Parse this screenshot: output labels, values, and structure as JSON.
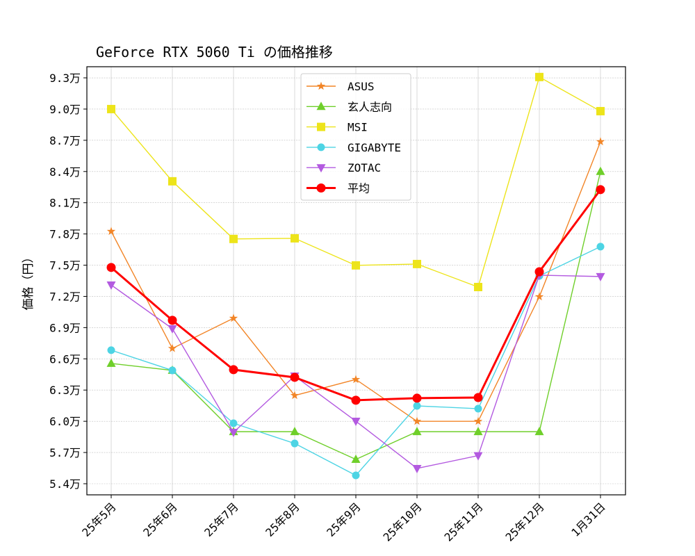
{
  "chart_data": {
    "type": "line",
    "title": "GeForce RTX 5060 Ti の価格推移",
    "xlabel": "",
    "ylabel": "価格（円）",
    "categories": [
      "25年5月",
      "25年6月",
      "25年7月",
      "25年8月",
      "25年9月",
      "25年10月",
      "25年11月",
      "25年12月",
      "1月31日"
    ],
    "ylim": [
      53000,
      94000
    ],
    "yticks": [
      54000,
      57000,
      60000,
      63000,
      66000,
      69000,
      72000,
      75000,
      78000,
      81000,
      84000,
      87000,
      90000,
      93000
    ],
    "ytick_labels": [
      "5.4万",
      "5.7万",
      "6.0万",
      "6.3万",
      "6.6万",
      "6.9万",
      "7.2万",
      "7.5万",
      "7.8万",
      "8.1万",
      "8.4万",
      "8.7万",
      "9.0万",
      "9.3万"
    ],
    "grid": true,
    "legend_position": "top-center",
    "series": [
      {
        "name": "ASUS",
        "color": "#f28527",
        "marker": "star",
        "values": [
          78250,
          67000,
          69900,
          62480,
          64020,
          60000,
          60000,
          71970,
          86870
        ]
      },
      {
        "name": "玄人志向",
        "color": "#6fcf2a",
        "marker": "triangle-up",
        "values": [
          65560,
          64890,
          59000,
          59000,
          56340,
          59000,
          59000,
          59000,
          84000
        ]
      },
      {
        "name": "MSI",
        "color": "#ede41a",
        "marker": "square",
        "values": [
          90000,
          83060,
          77520,
          77580,
          74980,
          75110,
          72900,
          93080,
          89800
        ]
      },
      {
        "name": "GIGABYTE",
        "color": "#4dd4e4",
        "marker": "circle",
        "values": [
          66830,
          64890,
          59810,
          57870,
          54800,
          61480,
          61210,
          73970,
          76780
        ]
      },
      {
        "name": "ZOTAC",
        "color": "#b35ae0",
        "marker": "triangle-down",
        "values": [
          73100,
          68900,
          58940,
          64350,
          60010,
          55470,
          56700,
          74040,
          73910
        ]
      },
      {
        "name": "平均",
        "color": "#ff0000",
        "marker": "circle",
        "bold": true,
        "values": [
          74780,
          69700,
          64960,
          64220,
          62020,
          62220,
          62280,
          74370,
          82260
        ]
      }
    ]
  }
}
